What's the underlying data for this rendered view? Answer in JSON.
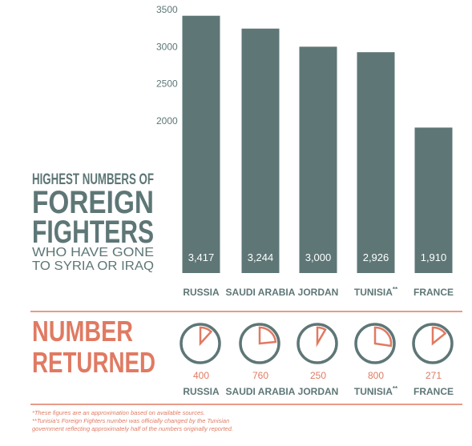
{
  "colors": {
    "bar": "#5e7676",
    "coral": "#e07a62",
    "axis_text": "#5e7676",
    "divider": "#e07a62"
  },
  "title": {
    "line1": "HIGHEST NUMBERS OF",
    "line2": "FOREIGN",
    "line3": "FIGHTERS",
    "line4": "WHO HAVE GONE",
    "line5": "TO SYRIA OR IRAQ"
  },
  "returned": {
    "line1": "NUMBER",
    "line2": "RETURNED"
  },
  "chart_data": [
    {
      "type": "bar",
      "title": "HIGHEST NUMBERS OF FOREIGN FIGHTERS WHO HAVE GONE TO SYRIA OR IRAQ",
      "categories": [
        "RUSSIA",
        "SAUDI ARABIA",
        "JORDAN",
        "TUNISIA",
        "FRANCE"
      ],
      "category_marks": [
        "",
        "",
        "",
        "**",
        ""
      ],
      "values": [
        3417,
        3244,
        3000,
        2926,
        1910
      ],
      "value_labels": [
        "3,417",
        "3,244",
        "3,000",
        "2,926",
        "1,910"
      ],
      "yticks": [
        2000,
        2500,
        3000,
        3500
      ],
      "ylim": [
        0,
        3500
      ],
      "grid": false
    },
    {
      "type": "pie",
      "title": "NUMBER RETURNED",
      "categories": [
        "RUSSIA",
        "SAUDI ARABIA",
        "JORDAN",
        "TUNISIA",
        "FRANCE"
      ],
      "category_marks": [
        "",
        "",
        "",
        "**",
        ""
      ],
      "returned": [
        400,
        760,
        250,
        800,
        271
      ],
      "totals": [
        3417,
        3244,
        3000,
        2926,
        1910
      ]
    }
  ],
  "footnotes": {
    "note1": "*These figures are an approximation based on available sources.",
    "note2": "**Tunisia's Foreign Fighters number was officially changed by the Tunisian",
    "note3": "government reflecting approximately half of the numbers originally reported."
  }
}
